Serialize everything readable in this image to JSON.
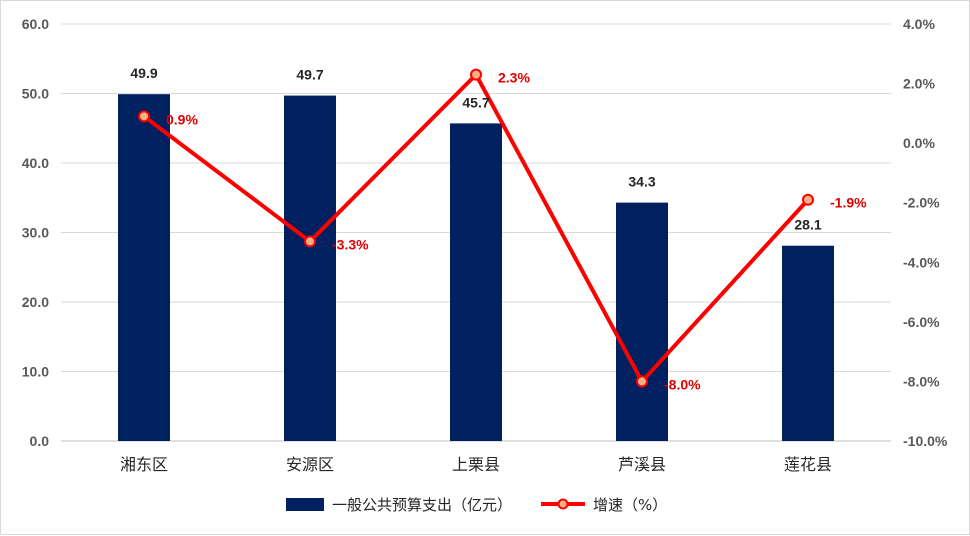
{
  "chart_data": {
    "type": "bar",
    "categories": [
      "湘东区",
      "安源区",
      "上栗县",
      "芦溪县",
      "莲花县"
    ],
    "series": [
      {
        "name": "一般公共预算支出（亿元）",
        "type": "bar",
        "axis": "left",
        "color": "#002060",
        "values": [
          49.9,
          49.7,
          45.7,
          34.3,
          28.1
        ],
        "labels": [
          "49.9",
          "49.7",
          "45.7",
          "34.3",
          "28.1"
        ]
      },
      {
        "name": "增速（%）",
        "type": "line",
        "axis": "right",
        "color": "#ff0000",
        "marker_fill": "#f4b183",
        "values": [
          0.9,
          -3.3,
          2.3,
          -8.0,
          -1.9
        ],
        "labels": [
          "0.9%",
          "-3.3%",
          "2.3%",
          "-8.0%",
          "-1.9%"
        ]
      }
    ],
    "y_left": {
      "lim": [
        0,
        60
      ],
      "ticks": [
        "0.0",
        "10.0",
        "20.0",
        "30.0",
        "40.0",
        "50.0",
        "60.0"
      ]
    },
    "y_right": {
      "lim": [
        -10,
        4
      ],
      "ticks": [
        "-10.0%",
        "-8.0%",
        "-6.0%",
        "-4.0%",
        "-2.0%",
        "0.0%",
        "2.0%",
        "4.0%"
      ]
    },
    "grid": true,
    "legend_position": "bottom"
  }
}
